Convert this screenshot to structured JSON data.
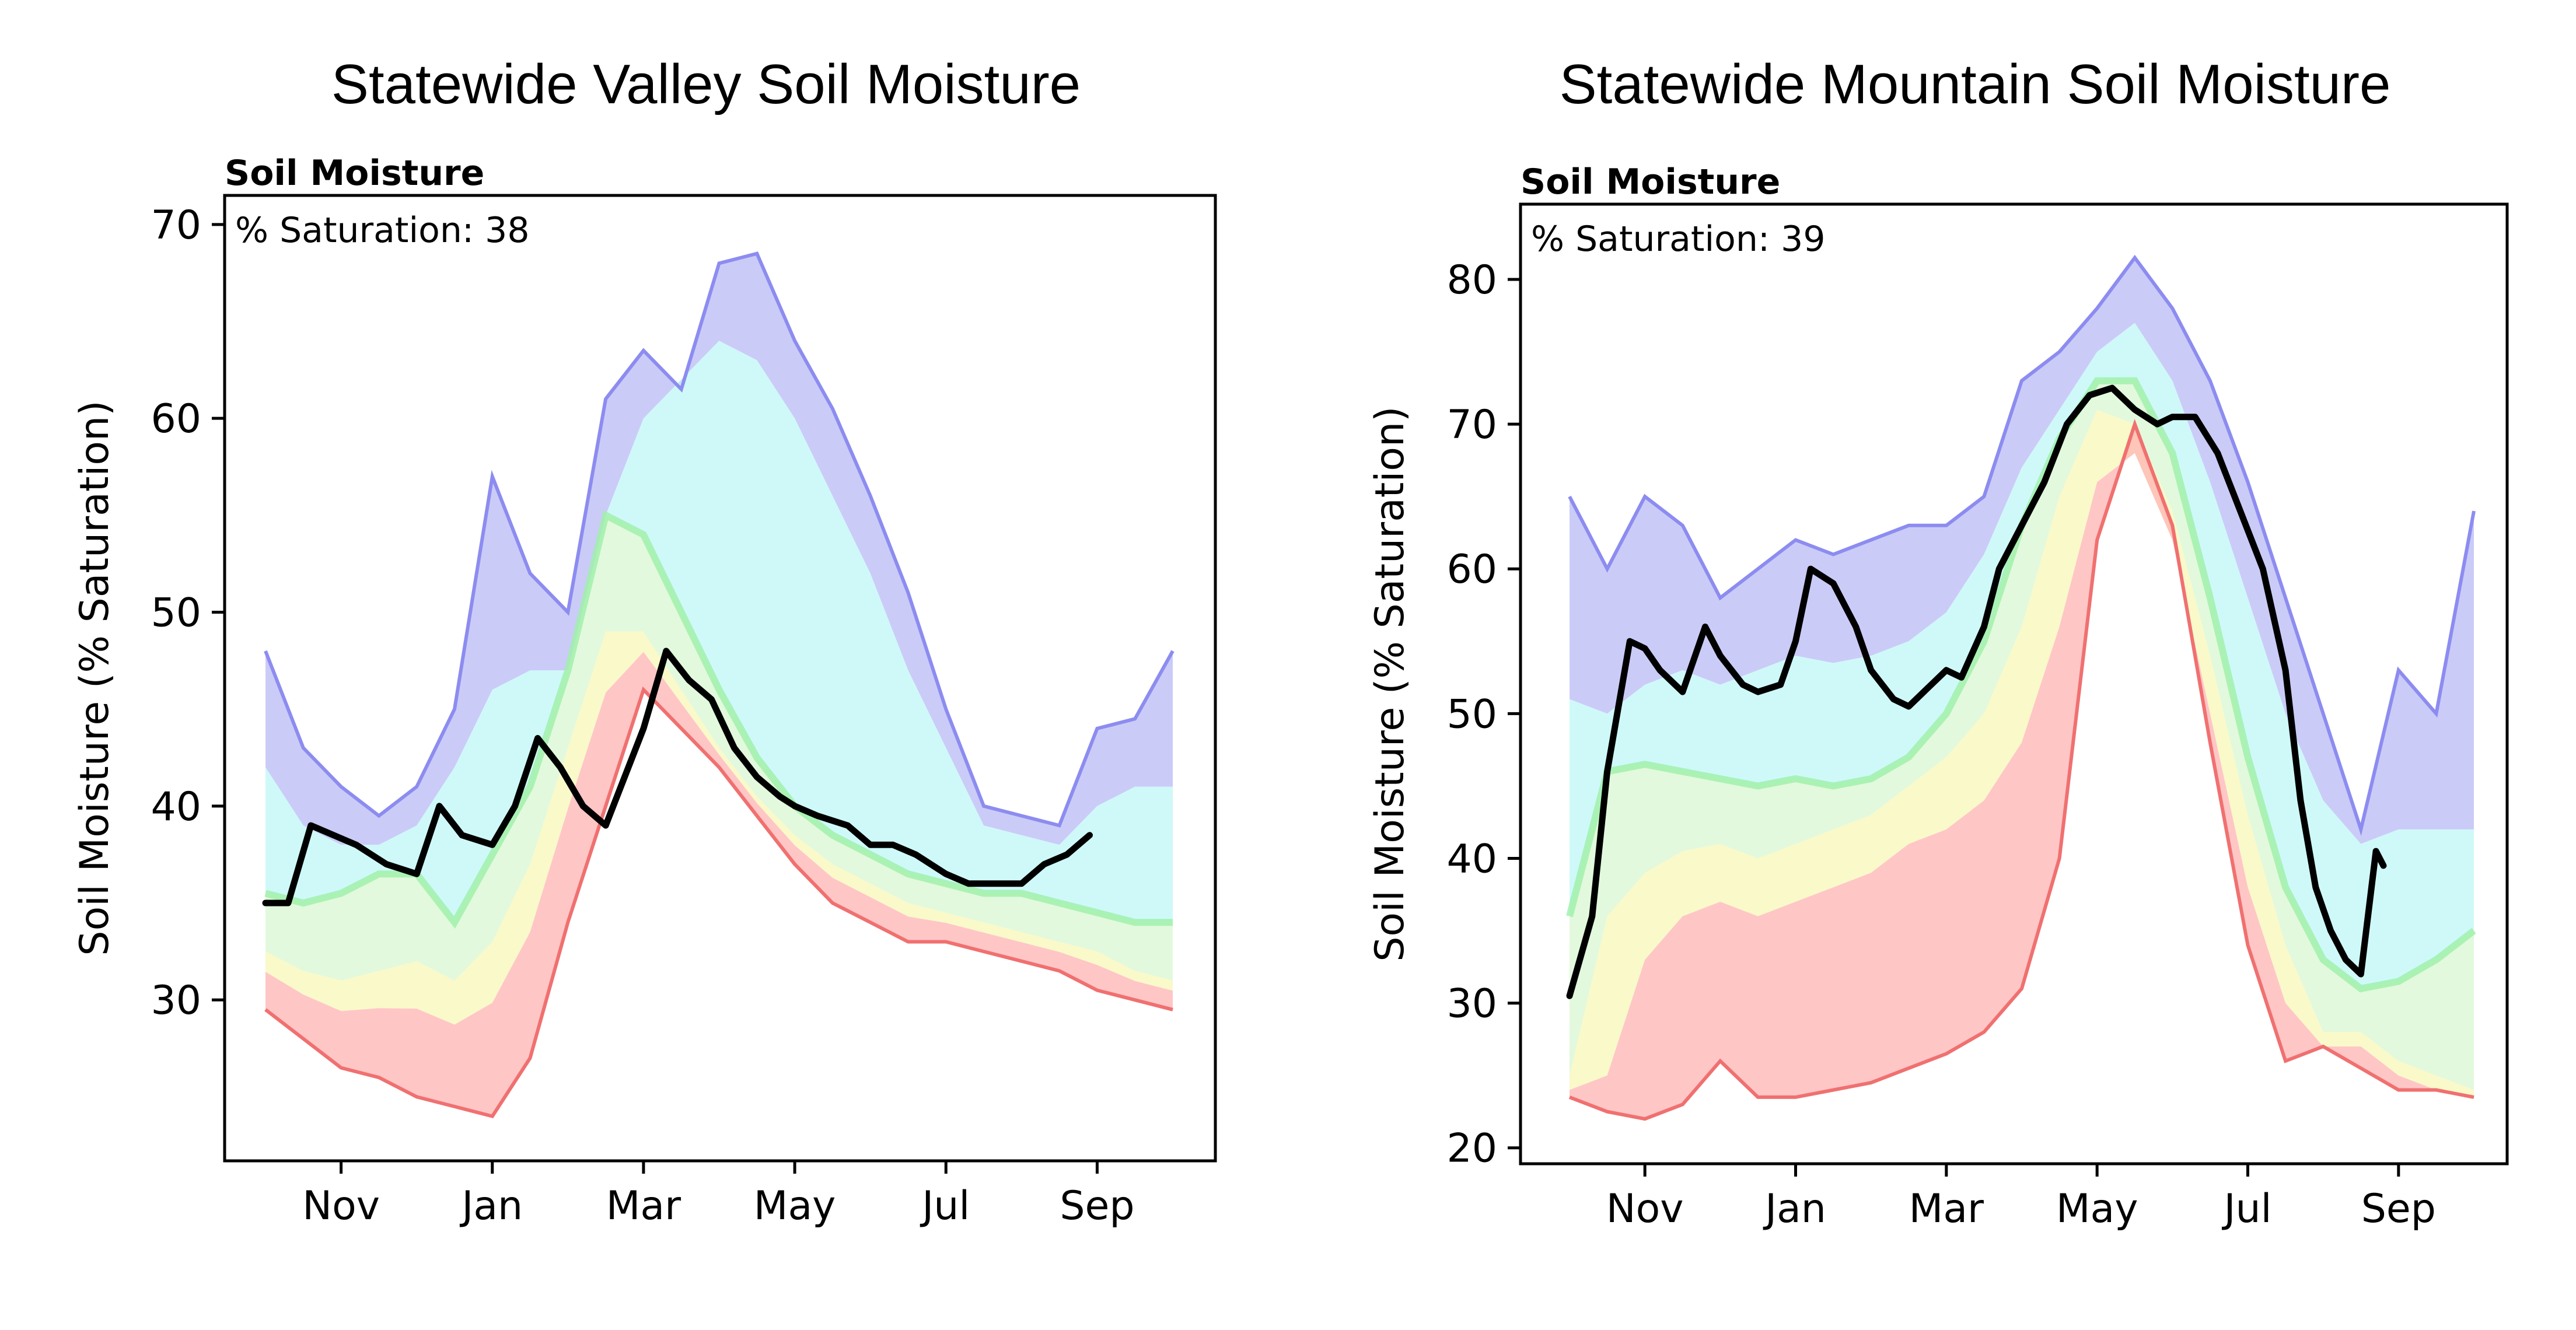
{
  "chart_data": [
    {
      "type": "area",
      "title": "Statewide Valley Soil Moisture",
      "subtitle": "Soil Moisture",
      "annotation": "% Saturation: 38",
      "ylabel": "Soil Moisture (% Saturation)",
      "xlabel": "",
      "x_ticks": [
        "Nov",
        "Jan",
        "Mar",
        "May",
        "Jul",
        "Sep"
      ],
      "y_ticks": [
        30,
        40,
        50,
        60,
        70
      ],
      "ylim": [
        21.7,
        71.5
      ],
      "x_range_months": [
        0,
        12
      ],
      "grid": false,
      "colors": {
        "max": "#8c8cf0",
        "p90": "#b9b9f5",
        "p70": "#bff7f7",
        "p50": "#9ef0a8",
        "p30": "#f7f7b8",
        "p10": "#ffb3b3",
        "min": "#f07070",
        "current": "#000000"
      },
      "x": [
        0.0,
        0.5,
        1.0,
        1.5,
        2.0,
        2.5,
        3.0,
        3.5,
        4.0,
        4.5,
        5.0,
        5.5,
        6.0,
        6.5,
        7.0,
        7.5,
        8.0,
        8.5,
        9.0,
        9.5,
        10.0,
        10.5,
        11.0,
        11.5,
        12.0
      ],
      "max": [
        48.0,
        43.0,
        41.0,
        39.5,
        41.0,
        45.0,
        57.0,
        52.0,
        50.0,
        61.0,
        63.5,
        61.5,
        68.0,
        68.5,
        64.0,
        60.5,
        56.0,
        51.0,
        45.0,
        40.0,
        39.5,
        39.0,
        44.0,
        44.5,
        48.0
      ],
      "p70": [
        42.0,
        39.0,
        38.0,
        38.0,
        39.0,
        42.0,
        46.0,
        47.0,
        47.0,
        55.0,
        60.0,
        62.0,
        64.0,
        63.0,
        60.0,
        56.0,
        52.0,
        47.0,
        43.0,
        39.0,
        38.5,
        38.0,
        40.0,
        41.0,
        41.0
      ],
      "p50": [
        35.5,
        35.0,
        35.5,
        36.5,
        36.5,
        34.0,
        37.5,
        41.0,
        47.0,
        55.0,
        54.0,
        50.0,
        46.0,
        42.5,
        40.0,
        38.5,
        37.5,
        36.5,
        36.0,
        35.5,
        35.5,
        35.0,
        34.5,
        34.0,
        34.0
      ],
      "p30": [
        32.5,
        31.5,
        31.0,
        31.5,
        32.0,
        31.0,
        33.0,
        37.0,
        43.0,
        49.0,
        49.0,
        46.0,
        43.0,
        40.5,
        38.5,
        37.0,
        36.0,
        35.0,
        34.5,
        34.0,
        33.5,
        33.0,
        32.5,
        31.5,
        31.0
      ],
      "min": [
        29.5,
        28.0,
        26.5,
        26.0,
        25.0,
        24.5,
        24.0,
        27.0,
        34.0,
        40.0,
        46.0,
        44.0,
        42.0,
        39.5,
        37.0,
        35.0,
        34.0,
        33.0,
        33.0,
        32.5,
        32.0,
        31.5,
        30.5,
        30.0,
        29.5
      ],
      "current": {
        "x": [
          0.0,
          0.3,
          0.6,
          0.9,
          1.2,
          1.6,
          2.0,
          2.3,
          2.6,
          3.0,
          3.3,
          3.6,
          3.9,
          4.2,
          4.5,
          4.8,
          5.0,
          5.3,
          5.6,
          5.9,
          6.2,
          6.5,
          6.8,
          7.0,
          7.3,
          7.7,
          8.0,
          8.3,
          8.6,
          9.0,
          9.3,
          9.6,
          10.0,
          10.3,
          10.6,
          10.9
        ],
        "y": [
          35.0,
          35.0,
          39.0,
          38.5,
          38.0,
          37.0,
          36.5,
          40.0,
          38.5,
          38.0,
          40.0,
          43.5,
          42.0,
          40.0,
          39.0,
          42.0,
          44.0,
          48.0,
          46.5,
          45.5,
          43.0,
          41.5,
          40.5,
          40.0,
          39.5,
          39.0,
          38.0,
          38.0,
          37.5,
          36.5,
          36.0,
          36.0,
          36.0,
          37.0,
          37.5,
          38.5
        ]
      }
    },
    {
      "type": "area",
      "title": "Statewide Mountain Soil Moisture",
      "subtitle": "Soil Moisture",
      "annotation": "% Saturation: 39",
      "ylabel": "Soil Moisture (% Saturation)",
      "xlabel": "",
      "x_ticks": [
        "Nov",
        "Jan",
        "Mar",
        "May",
        "Jul",
        "Sep"
      ],
      "y_ticks": [
        20,
        30,
        40,
        50,
        60,
        70,
        80
      ],
      "ylim": [
        18.9,
        85.2
      ],
      "x_range_months": [
        0,
        12
      ],
      "grid": false,
      "colors": {
        "max": "#8c8cf0",
        "p90": "#b9b9f5",
        "p70": "#bff7f7",
        "p50": "#9ef0a8",
        "p30": "#f7f7b8",
        "p10": "#ffb3b3",
        "min": "#f07070",
        "current": "#000000"
      },
      "x": [
        0.0,
        0.5,
        1.0,
        1.5,
        2.0,
        2.5,
        3.0,
        3.5,
        4.0,
        4.5,
        5.0,
        5.5,
        6.0,
        6.5,
        7.0,
        7.5,
        8.0,
        8.5,
        9.0,
        9.5,
        10.0,
        10.5,
        11.0,
        11.5,
        12.0
      ],
      "max": [
        65.0,
        60.0,
        65.0,
        63.0,
        58.0,
        60.0,
        62.0,
        61.0,
        62.0,
        63.0,
        63.0,
        65.0,
        73.0,
        75.0,
        78.0,
        81.5,
        78.0,
        73.0,
        66.0,
        58.0,
        50.0,
        42.0,
        53.0,
        50.0,
        64.0
      ],
      "p70": [
        51.0,
        50.0,
        52.0,
        53.0,
        52.0,
        53.0,
        54.0,
        53.5,
        54.0,
        55.0,
        57.0,
        61.0,
        67.0,
        71.0,
        75.0,
        77.0,
        73.0,
        66.0,
        58.0,
        50.0,
        44.0,
        41.0,
        42.0,
        42.0,
        42.0
      ],
      "p50": [
        36.0,
        46.0,
        46.5,
        46.0,
        45.5,
        45.0,
        45.5,
        45.0,
        45.5,
        47.0,
        50.0,
        55.0,
        63.0,
        69.0,
        73.0,
        73.0,
        68.0,
        58.0,
        47.0,
        38.0,
        33.0,
        31.0,
        31.5,
        33.0,
        35.0
      ],
      "p30": [
        25.0,
        36.0,
        39.0,
        40.5,
        41.0,
        40.0,
        41.0,
        42.0,
        43.0,
        45.0,
        47.0,
        50.0,
        56.0,
        65.0,
        71.0,
        70.0,
        64.0,
        54.0,
        43.0,
        34.0,
        28.0,
        28.0,
        26.0,
        25.0,
        24.0
      ],
      "p10": [
        24.0,
        25.0,
        33.0,
        36.0,
        37.0,
        36.0,
        37.0,
        38.0,
        39.0,
        41.0,
        42.0,
        44.0,
        48.0,
        56.0,
        66.0,
        68.0,
        62.0,
        50.0,
        38.0,
        30.0,
        27.0,
        27.0,
        25.0,
        24.0,
        23.5
      ],
      "min": [
        23.5,
        22.5,
        22.0,
        23.0,
        26.0,
        23.5,
        23.5,
        24.0,
        24.5,
        25.5,
        26.5,
        28.0,
        31.0,
        40.0,
        62.0,
        70.0,
        63.0,
        48.0,
        34.0,
        26.0,
        27.0,
        25.5,
        24.0,
        24.0,
        23.5
      ],
      "current": {
        "x": [
          0.0,
          0.3,
          0.5,
          0.8,
          1.0,
          1.2,
          1.5,
          1.8,
          2.0,
          2.3,
          2.5,
          2.8,
          3.0,
          3.2,
          3.5,
          3.8,
          4.0,
          4.3,
          4.5,
          4.8,
          5.0,
          5.2,
          5.5,
          5.7,
          6.0,
          6.3,
          6.6,
          6.9,
          7.2,
          7.5,
          7.8,
          8.0,
          8.3,
          8.6,
          8.9,
          9.2,
          9.5,
          9.7,
          9.9,
          10.1,
          10.3,
          10.5,
          10.7,
          10.8
        ],
        "y": [
          30.5,
          36.0,
          46.0,
          55.0,
          54.5,
          53.0,
          51.5,
          56.0,
          54.0,
          52.0,
          51.5,
          52.0,
          55.0,
          60.0,
          59.0,
          56.0,
          53.0,
          51.0,
          50.5,
          52.0,
          53.0,
          52.5,
          56.0,
          60.0,
          63.0,
          66.0,
          70.0,
          72.0,
          72.5,
          71.0,
          70.0,
          70.5,
          70.5,
          68.0,
          64.0,
          60.0,
          53.0,
          44.0,
          38.0,
          35.0,
          33.0,
          32.0,
          40.5,
          39.5
        ]
      }
    }
  ]
}
